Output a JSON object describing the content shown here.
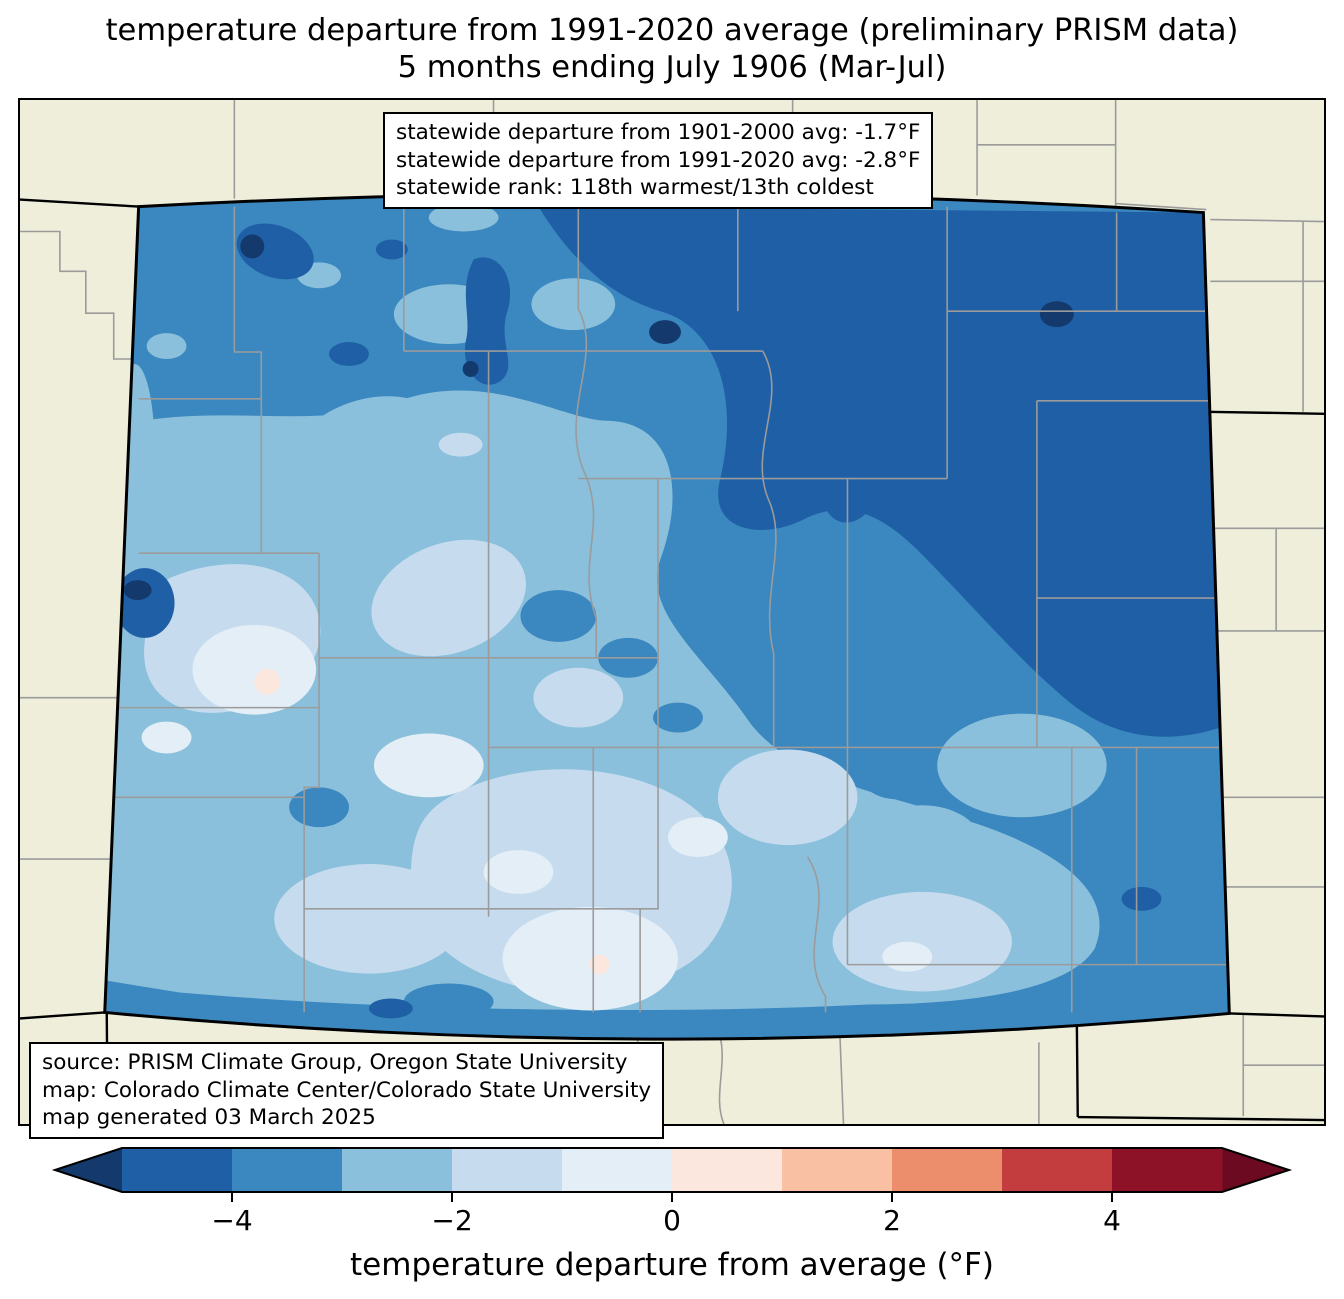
{
  "title": {
    "line1": "temperature departure from 1991-2020 average (preliminary PRISM data)",
    "line2": "5 months ending July 1906 (Mar-Jul)"
  },
  "stats_box": {
    "line1": "statewide departure from 1901-2000 avg: -1.7°F",
    "line2": "statewide departure from 1991-2020 avg: -2.8°F",
    "line3": "statewide rank: 118th warmest/13th coldest"
  },
  "source_box": {
    "line1": "source: PRISM Climate Group, Oregon State University",
    "line2": "map: Colorado Climate Center/Colorado State University",
    "line3": "map generated 03 March 2025"
  },
  "map": {
    "region": "Colorado",
    "background_color": "#eeeedb",
    "county_line_color": "#9b9b9b",
    "state_border_color": "#000000",
    "levels": {
      "below_m5": "#14396c",
      "m5_m4": "#1e5fa6",
      "m4_m3": "#3b87bf",
      "m3_m2": "#8ac0dc",
      "m2_m1": "#c6dcee",
      "m1_0": "#e4eef7",
      "p0_p1": "#fbe7dd",
      "p1_p2": "#f9c0a4",
      "p2_p3": "#ec8d6b",
      "p3_p4": "#c43d3e",
      "p4_p5": "#8d1227",
      "above_p5": "#6b0a20"
    }
  },
  "colorbar": {
    "label": "temperature departure from average (°F)",
    "range": [
      -5,
      5
    ],
    "segment_colors": [
      "#1e5fa6",
      "#3b87bf",
      "#8ac0dc",
      "#c6dcee",
      "#e4eef7",
      "#fbe7dd",
      "#f9c0a4",
      "#ec8d6b",
      "#c43d3e",
      "#8d1227"
    ],
    "under_color": "#14396c",
    "over_color": "#6b0a20",
    "ticks": [
      {
        "value": -4,
        "label": "−4"
      },
      {
        "value": -2,
        "label": "−2"
      },
      {
        "value": 0,
        "label": "0"
      },
      {
        "value": 2,
        "label": "2"
      },
      {
        "value": 4,
        "label": "4"
      }
    ]
  },
  "chart_data": {
    "type": "choropleth_map",
    "title": "temperature departure from 1991-2020 average (preliminary PRISM data)",
    "subtitle": "5 months ending July 1906 (Mar-Jul)",
    "region": "Colorado",
    "units": "°F",
    "statewide_departure_from_1901_2000_avg_F": -1.7,
    "statewide_departure_from_1991_2020_avg_F": -2.8,
    "statewide_rank": "118th warmest/13th coldest",
    "colorbar_ticks": [
      -4,
      -2,
      0,
      2,
      4
    ],
    "colorbar_range": [
      -5,
      5
    ],
    "contour_interval_F": 1,
    "dominant_anomaly_pattern": "entire state below average; coldest (-4 to -5°F and locally below -5°F) across north-central and northeast Colorado, mildest (0 to -1°F with tiny above-average spots) in west-central and south-central Colorado"
  }
}
